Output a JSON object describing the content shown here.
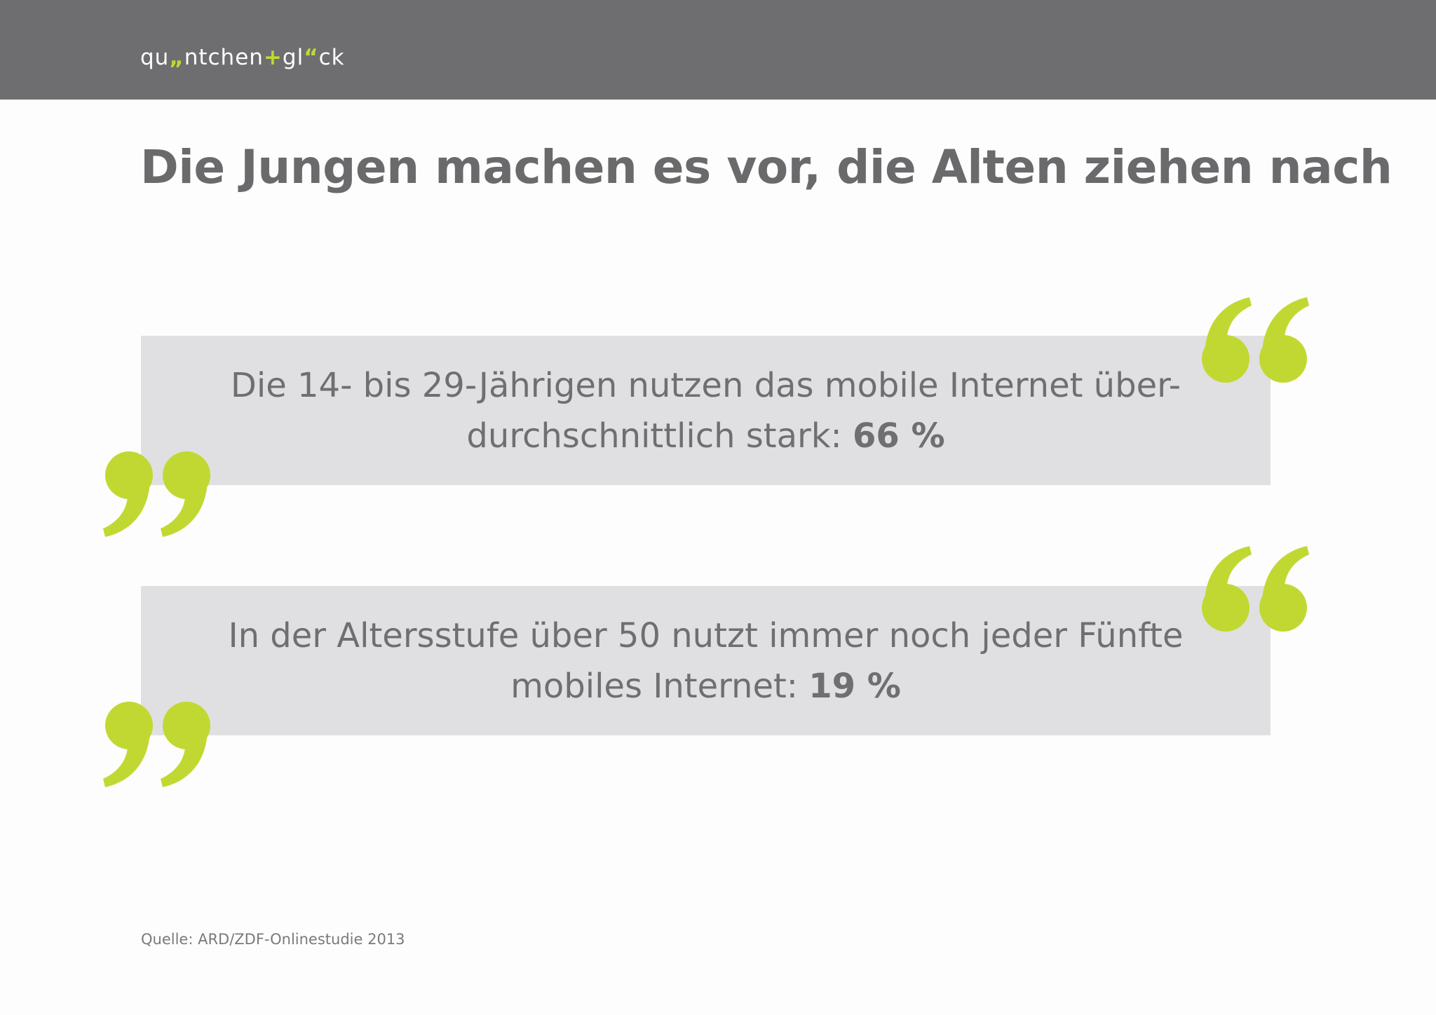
{
  "header": {
    "logo": {
      "part1": "qu",
      "quote_low": "„",
      "part2": "ntchen",
      "plus": "+",
      "part3": "gl",
      "quote_high": "“",
      "part4": "ck"
    }
  },
  "title": "Die Jungen machen es vor, die Alten ziehen nach",
  "quotes": [
    {
      "line1": "Die 14- bis 29-Jährigen nutzen das mobile Internet über-",
      "line2_text": "durchschnittlich stark: ",
      "value": "66 %"
    },
    {
      "line1": "In der Altersstufe  über 50 nutzt immer noch jeder Fünfte",
      "line2_text": "mobiles Internet: ",
      "value": "19 %"
    }
  ],
  "source": "Quelle: ARD/ZDF-Onlinestudie 2013",
  "colors": {
    "header_bg": "#6e6e70",
    "accent": "#c2d832",
    "box_bg": "#e0e0e2",
    "text": "#6f6f71"
  },
  "icons": {
    "open_quote": "opening-quote-mark-icon",
    "close_quote": "closing-quote-mark-icon"
  }
}
